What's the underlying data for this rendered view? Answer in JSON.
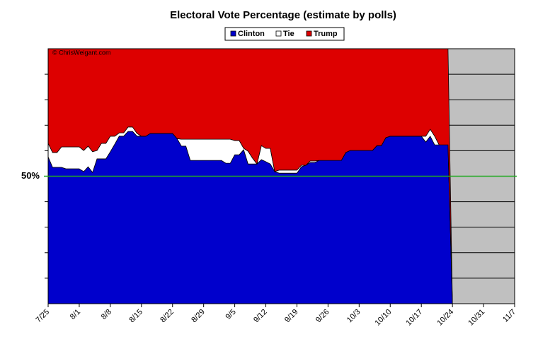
{
  "chart_data": {
    "type": "stacked_area",
    "title": "Electoral Vote Percentage (estimate by polls)",
    "watermark": "© ChrisWeigant.com",
    "x": [
      "7/25",
      "7/26",
      "7/27",
      "7/28",
      "7/29",
      "8/1",
      "8/2",
      "8/3",
      "8/4",
      "8/5",
      "8/6",
      "8/7",
      "8/8",
      "8/9",
      "8/10",
      "8/11",
      "8/12",
      "8/13",
      "8/14",
      "8/15",
      "8/16",
      "8/17",
      "8/22",
      "8/23",
      "8/24",
      "8/25",
      "8/26",
      "9/2",
      "9/3",
      "9/4",
      "9/5",
      "9/6",
      "9/7",
      "9/8",
      "9/9",
      "9/10",
      "9/11",
      "9/12",
      "9/13",
      "9/14",
      "9/15",
      "9/19",
      "9/20",
      "9/21",
      "9/22",
      "9/23",
      "9/24",
      "9/29",
      "9/30",
      "10/1",
      "10/6",
      "10/7",
      "10/8",
      "10/9",
      "10/10",
      "10/17",
      "10/18",
      "10/19",
      "10/20",
      "10/21",
      "10/23",
      "10/24"
    ],
    "series": [
      {
        "name": "Clinton",
        "color": "#0000cc",
        "values": [
          57.6,
          53.5,
          53.5,
          53.5,
          52.9,
          52.9,
          51.8,
          53.7,
          51.5,
          56.8,
          56.8,
          56.8,
          59.6,
          62.6,
          65.7,
          65.7,
          67.6,
          67.6,
          65.7,
          65.7,
          65.7,
          66.8,
          66.8,
          64.8,
          61.8,
          61.8,
          56.2,
          56.2,
          55.1,
          55.1,
          58.4,
          58.4,
          60.4,
          54.8,
          54.8,
          54.8,
          56.5,
          55.7,
          54.8,
          51.8,
          51.2,
          51.2,
          53.7,
          54.3,
          55.4,
          55.4,
          56.2,
          56.2,
          59.3,
          60.1,
          60.1,
          62.0,
          62.0,
          65.1,
          65.7,
          65.7,
          63.4,
          65.7,
          62.3,
          62.3,
          62.3,
          0
        ]
      },
      {
        "name": "Tie",
        "color": "#ffffff",
        "values": [
          5.3,
          5.8,
          5.8,
          8.0,
          8.6,
          8.6,
          8.3,
          8.1,
          8.1,
          3.3,
          6.1,
          6.1,
          6.1,
          3.1,
          1.3,
          1.3,
          1.7,
          1.7,
          1.1,
          0,
          0,
          0,
          0,
          0,
          2.7,
          2.7,
          8.3,
          8.3,
          9.4,
          9.4,
          5.6,
          5.6,
          0.6,
          5.0,
          2.3,
          0,
          5.5,
          5.2,
          6.1,
          0,
          1.2,
          1.2,
          0.6,
          0,
          0.6,
          0.6,
          0,
          0,
          0,
          0,
          0,
          0,
          0,
          0,
          0,
          0,
          2.3,
          2.7,
          3.4,
          0,
          0,
          0
        ]
      },
      {
        "name": "Trump",
        "color": "#dd0000",
        "values": [
          37.1,
          40.7,
          40.7,
          38.5,
          38.5,
          38.5,
          39.9,
          38.2,
          40.4,
          39.9,
          37.1,
          37.1,
          34.3,
          34.3,
          33.0,
          33.0,
          30.7,
          30.7,
          33.2,
          34.3,
          34.3,
          33.2,
          33.2,
          35.2,
          35.5,
          35.5,
          35.5,
          35.5,
          35.5,
          35.5,
          36.0,
          36.0,
          39.0,
          40.2,
          42.9,
          45.2,
          38.0,
          39.1,
          39.1,
          48.2,
          47.6,
          47.6,
          45.7,
          45.7,
          44.0,
          44.0,
          43.8,
          43.8,
          40.7,
          39.9,
          39.9,
          38.0,
          38.0,
          34.9,
          34.3,
          34.3,
          34.3,
          31.6,
          34.3,
          37.7,
          37.7,
          0
        ]
      }
    ],
    "xlim": [
      "7/25",
      "11/7"
    ],
    "xticks": [
      "7/25",
      "8/1",
      "8/8",
      "8/15",
      "8/22",
      "8/29",
      "9/5",
      "9/12",
      "9/19",
      "9/26",
      "10/3",
      "10/10",
      "10/17",
      "10/24",
      "10/31",
      "11/7"
    ],
    "ylim": [
      0,
      100
    ],
    "yticks": [
      10,
      20,
      30,
      40,
      60,
      70,
      80,
      90
    ],
    "reference_line": {
      "value": 50,
      "label": "50%",
      "color": "#22aa22"
    },
    "background": "#c0c0c0",
    "grid": true,
    "legend": "top"
  }
}
